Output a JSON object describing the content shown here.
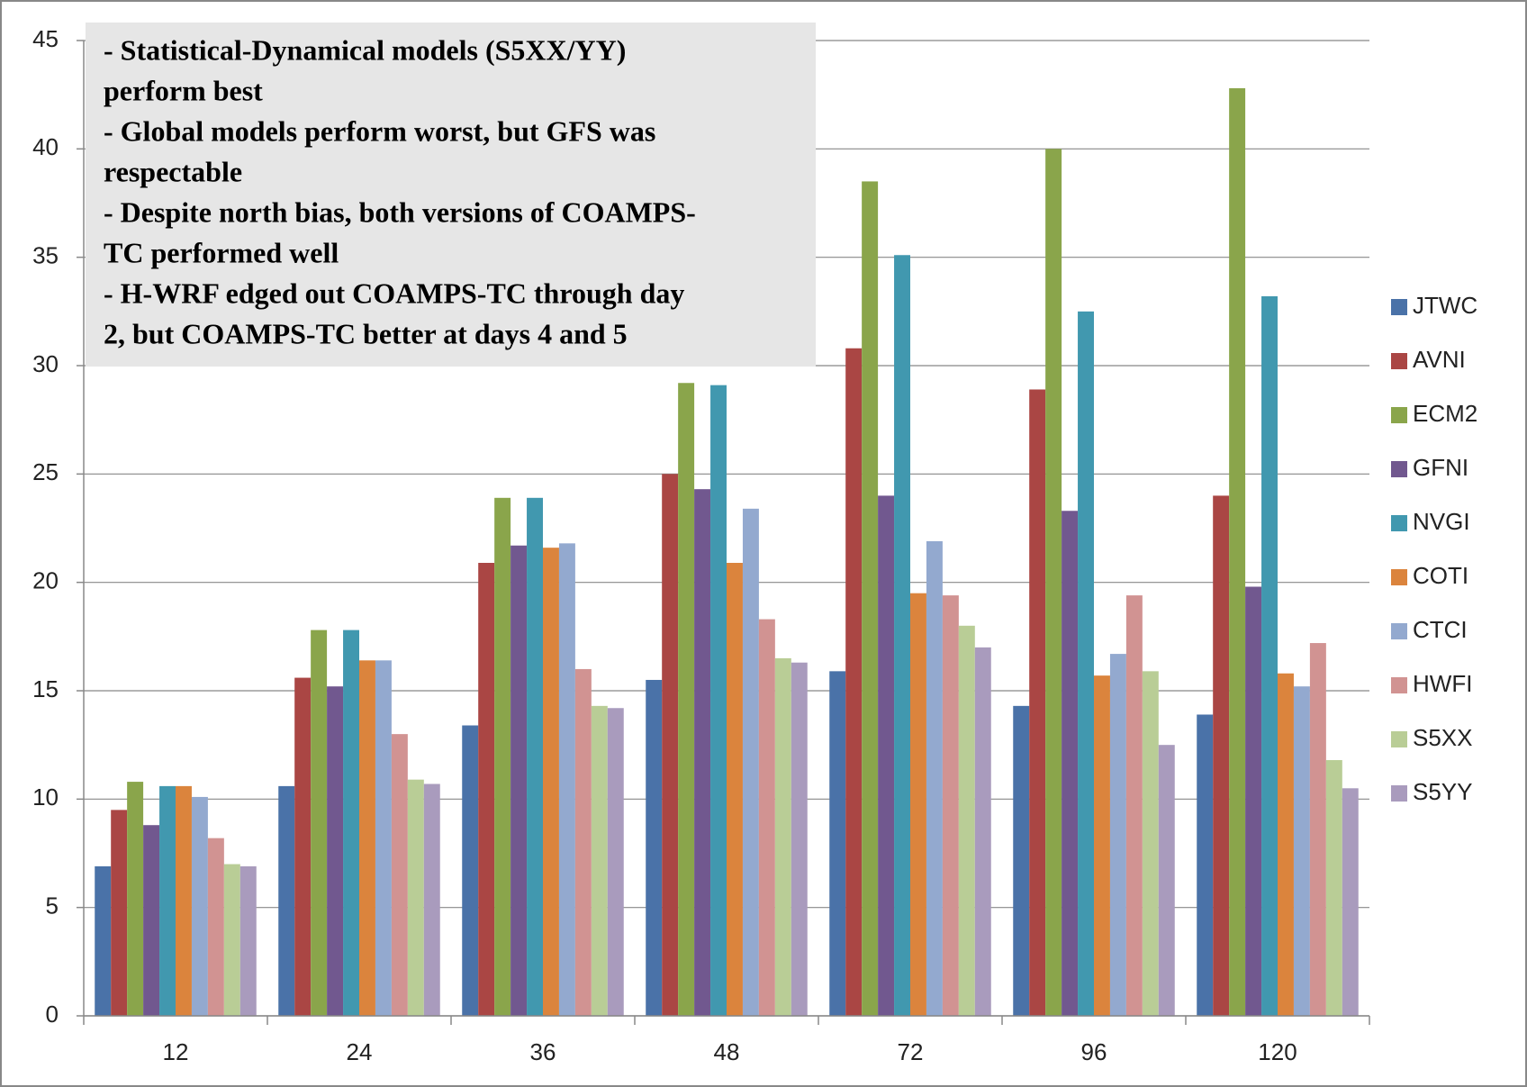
{
  "chart_data": {
    "type": "bar",
    "annotation_lines": [
      "- Statistical-Dynamical models (S5XX/YY)",
      "perform best",
      "- Global models perform worst, but GFS was",
      "respectable",
      "- Despite north bias, both versions of COAMPS-",
      "TC performed well",
      "- H-WRF edged out COAMPS-TC through day",
      "2, but COAMPS-TC better at days 4 and 5"
    ],
    "categories": [
      "12",
      "24",
      "36",
      "48",
      "72",
      "96",
      "120"
    ],
    "series": [
      {
        "name": "JTWC",
        "color": "#4a72a8",
        "values": [
          6.9,
          10.6,
          13.4,
          15.5,
          15.9,
          14.3,
          13.9
        ]
      },
      {
        "name": "AVNI",
        "color": "#aa4644",
        "values": [
          9.5,
          15.6,
          20.9,
          25.0,
          30.8,
          28.9,
          24.0
        ]
      },
      {
        "name": "ECM2",
        "color": "#8aa54b",
        "values": [
          10.8,
          17.8,
          23.9,
          29.2,
          38.5,
          40.0,
          42.8
        ]
      },
      {
        "name": "GFNI",
        "color": "#71588f",
        "values": [
          8.8,
          15.2,
          21.7,
          24.3,
          24.0,
          23.3,
          19.8
        ]
      },
      {
        "name": "NVGI",
        "color": "#4198af",
        "values": [
          10.6,
          17.8,
          23.9,
          29.1,
          35.1,
          32.5,
          33.2
        ]
      },
      {
        "name": "COTI",
        "color": "#db843d",
        "values": [
          10.6,
          16.4,
          21.6,
          20.9,
          19.5,
          15.7,
          15.8
        ]
      },
      {
        "name": "CTCI",
        "color": "#93a9cf",
        "values": [
          10.1,
          16.4,
          21.8,
          23.4,
          21.9,
          16.7,
          15.2
        ]
      },
      {
        "name": "HWFI",
        "color": "#d19392",
        "values": [
          8.2,
          13.0,
          16.0,
          18.3,
          19.4,
          19.4,
          17.2
        ]
      },
      {
        "name": "S5XX",
        "color": "#b9cd96",
        "values": [
          7.0,
          10.9,
          14.3,
          16.5,
          18.0,
          15.9,
          11.8
        ]
      },
      {
        "name": "S5YY",
        "color": "#a99bbd",
        "values": [
          6.9,
          10.7,
          14.2,
          16.3,
          17.0,
          12.5,
          10.5
        ]
      }
    ],
    "ylim": [
      0,
      45
    ],
    "yticks": [
      0,
      5,
      10,
      15,
      20,
      25,
      30,
      35,
      40,
      45
    ],
    "grid": true,
    "legend": "right"
  }
}
